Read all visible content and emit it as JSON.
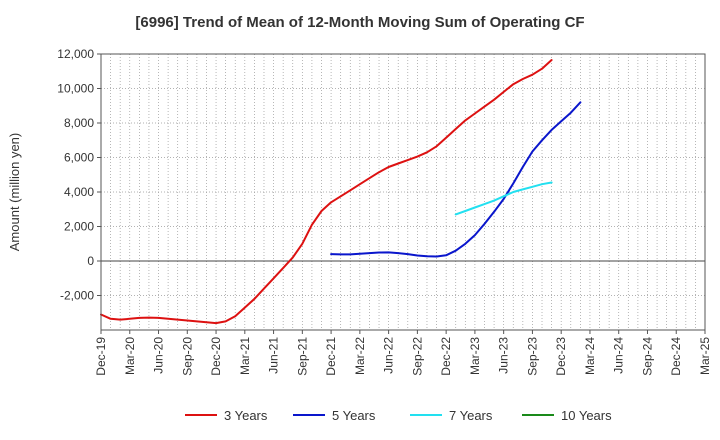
{
  "chart_data": {
    "type": "line",
    "title": "[6996]  Trend of Mean of 12-Month Moving Sum of Operating CF",
    "xlabel": "",
    "ylabel": "Amount (million yen)",
    "ylim": [
      -4000,
      12000
    ],
    "yticks": [
      -2000,
      0,
      2000,
      4000,
      6000,
      8000,
      10000,
      12000
    ],
    "ytick_labels": [
      "-2,000",
      "0",
      "2,000",
      "4,000",
      "6,000",
      "8,000",
      "10,000",
      "12,000"
    ],
    "xticks": [
      "Dec-19",
      "Mar-20",
      "Jun-20",
      "Sep-20",
      "Dec-20",
      "Mar-21",
      "Jun-21",
      "Sep-21",
      "Dec-21",
      "Mar-22",
      "Jun-22",
      "Sep-22",
      "Dec-22",
      "Mar-23",
      "Jun-23",
      "Sep-23",
      "Dec-23",
      "Mar-24",
      "Jun-24",
      "Sep-24",
      "Dec-24",
      "Mar-25"
    ],
    "grid": true,
    "legend_position": "bottom",
    "series": [
      {
        "name": "3 Years",
        "color": "#dd1111",
        "start_index": 0,
        "values": [
          -3100,
          -3350,
          -3400,
          -3350,
          -3300,
          -3280,
          -3300,
          -3350,
          -3400,
          -3450,
          -3500,
          -3550,
          -3600,
          -3500,
          -3200,
          -2700,
          -2200,
          -1600,
          -1000,
          -400,
          200,
          1000,
          2100,
          2900,
          3400,
          3750,
          4100,
          4450,
          4800,
          5150,
          5450,
          5650,
          5850,
          6050,
          6300,
          6650,
          7150,
          7650,
          8150,
          8550,
          8950,
          9350,
          9800,
          10250,
          10550,
          10800,
          11150,
          11650
        ]
      },
      {
        "name": "5 Years",
        "color": "#0a16cc",
        "start_index": 24,
        "values": [
          400,
          380,
          380,
          420,
          460,
          490,
          500,
          460,
          400,
          320,
          270,
          260,
          330,
          600,
          1000,
          1500,
          2150,
          2850,
          3600,
          4500,
          5450,
          6350,
          7000,
          7600,
          8100,
          8600,
          9200
        ]
      },
      {
        "name": "7 Years",
        "color": "#22e0f0",
        "start_index": 37,
        "values": [
          2700,
          2900,
          3100,
          3300,
          3500,
          3750,
          4000,
          4150,
          4300,
          4450,
          4550
        ]
      },
      {
        "name": "10 Years",
        "color": "#1a8a1a",
        "start_index": 0,
        "values": []
      }
    ]
  }
}
